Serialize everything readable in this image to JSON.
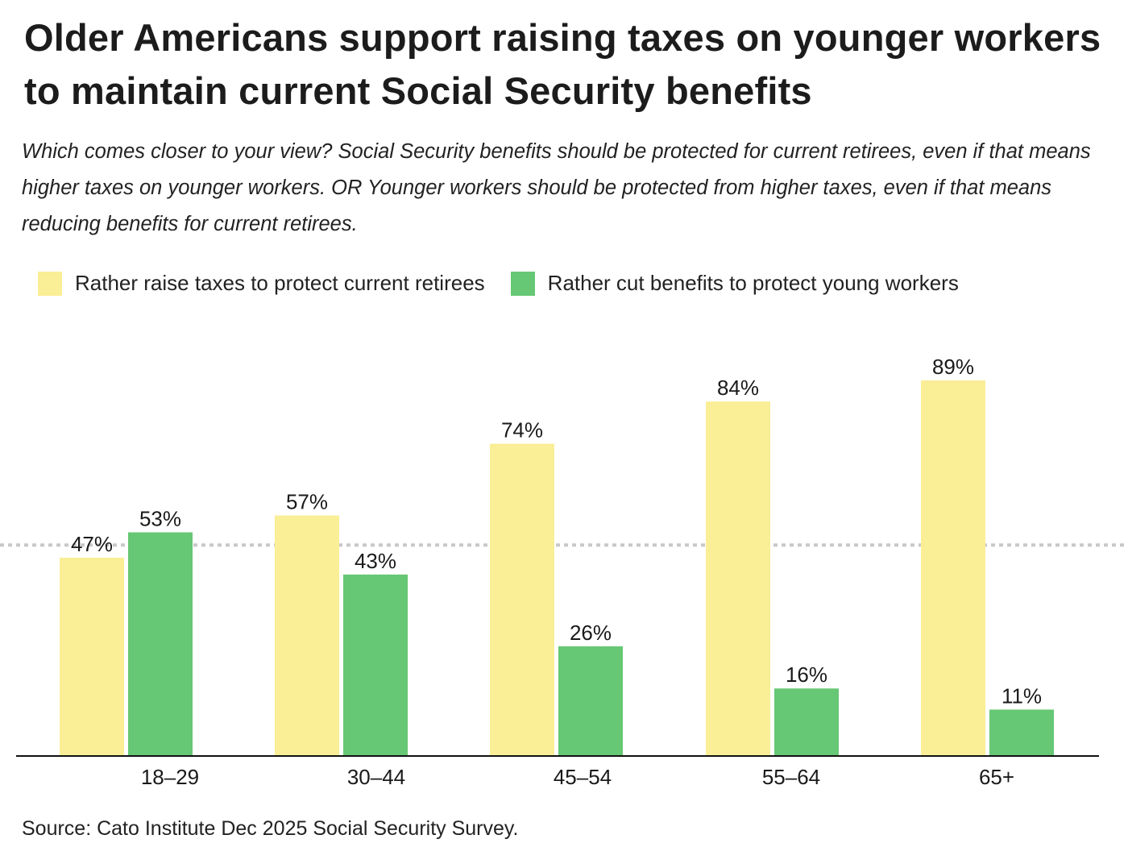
{
  "chart_data": {
    "type": "bar",
    "title": "Older Americans support raising taxes on younger workers to maintain current Social Security benefits",
    "subtitle": "Which comes closer to your view? Social Security benefits should be protected for current retirees, even if that means higher taxes on younger workers. OR Younger workers should be protected from higher taxes, even if that means reducing benefits for current retirees.",
    "categories": [
      "18–29",
      "30–44",
      "45–54",
      "55–64",
      "65+"
    ],
    "series": [
      {
        "name": "Rather raise taxes to protect current retirees",
        "values": [
          47,
          57,
          74,
          84,
          89
        ],
        "color": "#FAEE96"
      },
      {
        "name": "Rather cut benefits to protect young workers",
        "values": [
          53,
          43,
          26,
          16,
          11
        ],
        "color": "#66C774"
      }
    ],
    "value_suffix": "%",
    "reference_line": 50,
    "reference_line_color": "#c8c8c8",
    "ylim": [
      0,
      100
    ],
    "grid": false,
    "legend_placement": "top-left",
    "source": "Source: Cato Institute Dec 2025 Social Security Survey."
  }
}
